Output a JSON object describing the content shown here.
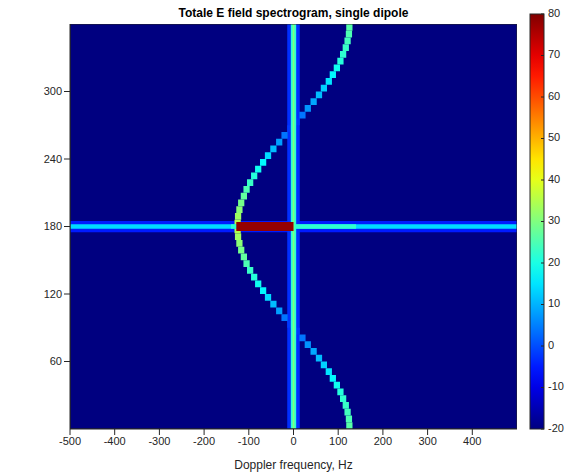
{
  "chart_data": {
    "type": "heatmap",
    "title": "Totale E field spectrogram, single dipole",
    "x_label": "Doppler frequency, Hz",
    "xlim": [
      -500,
      500
    ],
    "xticks": [
      -500,
      -400,
      -300,
      -200,
      -100,
      0,
      100,
      200,
      300,
      400
    ],
    "ylim": [
      0,
      360
    ],
    "yticks": [
      60,
      120,
      180,
      240,
      300
    ],
    "grid": false,
    "colorbar": {
      "range": [
        -20,
        80
      ],
      "ticks": [
        -20,
        -10,
        0,
        10,
        20,
        30,
        40,
        50,
        60,
        70,
        80
      ]
    },
    "cells": [
      [
        -500,
        500,
        0,
        360,
        -20
      ],
      [
        -500,
        500,
        175,
        185,
        -5
      ],
      [
        -14,
        14,
        0,
        360,
        -3
      ],
      [
        118,
        132,
        0,
        6,
        26
      ],
      [
        117,
        131,
        6,
        12,
        25
      ],
      [
        114,
        128,
        12,
        18,
        24
      ],
      [
        110,
        124,
        18,
        24,
        23
      ],
      [
        104,
        118,
        24,
        30,
        22
      ],
      [
        98,
        112,
        30,
        36,
        21
      ],
      [
        90,
        104,
        36,
        42,
        19
      ],
      [
        81,
        95,
        42,
        48,
        17
      ],
      [
        72,
        86,
        48,
        54,
        15
      ],
      [
        61,
        75,
        54,
        60,
        13
      ],
      [
        50,
        64,
        60,
        66,
        11
      ],
      [
        38,
        52,
        66,
        72,
        9
      ],
      [
        25,
        39,
        72,
        78,
        7
      ],
      [
        13,
        27,
        78,
        84,
        4
      ],
      [
        0,
        14,
        84,
        90,
        -2
      ],
      [
        -14,
        0,
        90,
        96,
        -2
      ],
      [
        -27,
        -13,
        96,
        102,
        4
      ],
      [
        -39,
        -25,
        102,
        108,
        8
      ],
      [
        -52,
        -38,
        108,
        114,
        11
      ],
      [
        -64,
        -50,
        114,
        120,
        14
      ],
      [
        -75,
        -61,
        120,
        126,
        17
      ],
      [
        -86,
        -72,
        126,
        132,
        19
      ],
      [
        -95,
        -81,
        132,
        138,
        21
      ],
      [
        -104,
        -90,
        138,
        144,
        23
      ],
      [
        -112,
        -98,
        144,
        150,
        25
      ],
      [
        -118,
        -104,
        150,
        156,
        27
      ],
      [
        -124,
        -110,
        156,
        162,
        29
      ],
      [
        -128,
        -114,
        162,
        168,
        31
      ],
      [
        -131,
        -117,
        168,
        174,
        33
      ],
      [
        -132,
        -118,
        174,
        180,
        35
      ],
      [
        -132,
        -118,
        180,
        186,
        35
      ],
      [
        -131,
        -117,
        186,
        192,
        33
      ],
      [
        -128,
        -114,
        192,
        198,
        31
      ],
      [
        -124,
        -110,
        198,
        204,
        29
      ],
      [
        -118,
        -104,
        204,
        210,
        27
      ],
      [
        -112,
        -98,
        210,
        216,
        25
      ],
      [
        -104,
        -90,
        216,
        222,
        23
      ],
      [
        -95,
        -81,
        222,
        228,
        21
      ],
      [
        -86,
        -72,
        228,
        234,
        19
      ],
      [
        -75,
        -61,
        234,
        240,
        17
      ],
      [
        -64,
        -50,
        240,
        246,
        14
      ],
      [
        -52,
        -38,
        246,
        252,
        11
      ],
      [
        -39,
        -25,
        252,
        258,
        8
      ],
      [
        -27,
        -13,
        258,
        264,
        4
      ],
      [
        -14,
        0,
        264,
        270,
        -2
      ],
      [
        0,
        14,
        270,
        276,
        -2
      ],
      [
        13,
        27,
        276,
        282,
        4
      ],
      [
        25,
        39,
        282,
        288,
        7
      ],
      [
        38,
        52,
        288,
        294,
        9
      ],
      [
        50,
        64,
        294,
        300,
        11
      ],
      [
        61,
        75,
        300,
        306,
        13
      ],
      [
        72,
        86,
        306,
        312,
        15
      ],
      [
        81,
        95,
        312,
        318,
        17
      ],
      [
        90,
        104,
        318,
        324,
        19
      ],
      [
        98,
        112,
        324,
        330,
        21
      ],
      [
        104,
        118,
        330,
        336,
        22
      ],
      [
        110,
        124,
        336,
        342,
        23
      ],
      [
        114,
        128,
        342,
        348,
        24
      ],
      [
        117,
        131,
        348,
        354,
        25
      ],
      [
        118,
        132,
        354,
        360,
        26
      ],
      [
        -500,
        500,
        178,
        182,
        14
      ],
      [
        -140,
        140,
        178,
        182,
        22
      ],
      [
        -6,
        6,
        0,
        360,
        22
      ],
      [
        -2,
        2,
        0,
        360,
        30
      ],
      [
        -128,
        0,
        176,
        184,
        78
      ]
    ]
  }
}
